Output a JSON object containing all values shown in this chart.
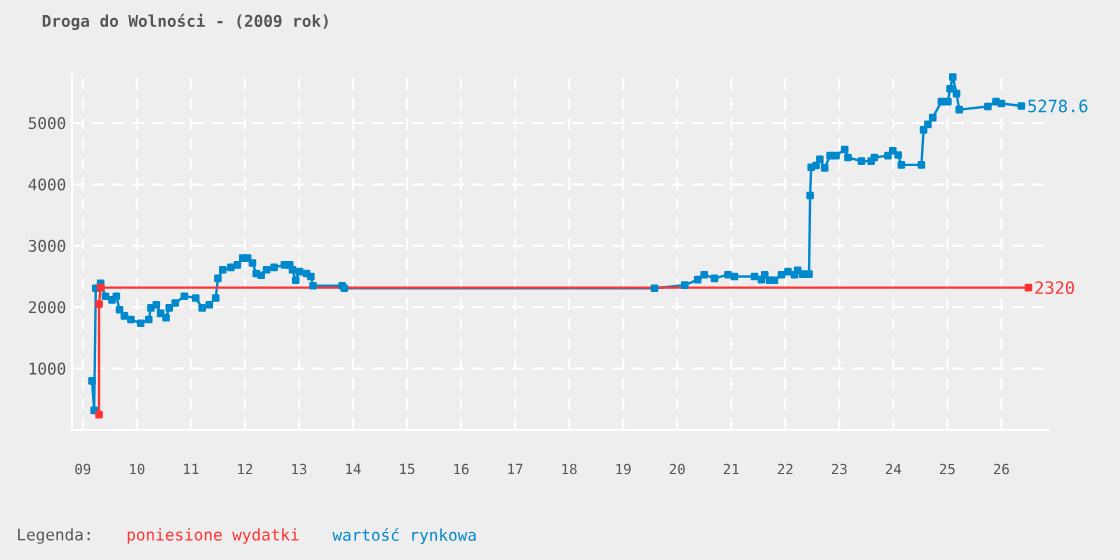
{
  "chart_data": {
    "type": "line",
    "title": "Droga do Wolności - (2009 rok)",
    "xlim": [
      8.8,
      26.9
    ],
    "ylim": [
      0,
      5800
    ],
    "xticks": [
      {
        "value": 9,
        "label": "09"
      },
      10,
      11,
      12,
      13,
      14,
      15,
      16,
      17,
      18,
      19,
      20,
      21,
      22,
      23,
      24,
      25,
      26
    ],
    "yticks": [
      1000,
      2000,
      3000,
      4000,
      5000
    ],
    "grid": true,
    "legend": "bottom left",
    "legend_title": "Legenda:",
    "marker": "square",
    "line_style": "solid",
    "series": [
      {
        "name": "poniesione wydatki",
        "color": "#ff3333",
        "x": [
          9.3,
          9.3,
          9.33,
          26.5
        ],
        "values": [
          250,
          2050,
          2320,
          2320
        ]
      },
      {
        "name": "wartość rynkowa",
        "color": "#0088cc",
        "x": [
          9.17,
          9.21,
          9.24,
          9.33,
          9.42,
          9.54,
          9.62,
          9.68,
          9.77,
          9.89,
          10.07,
          10.22,
          10.26,
          10.36,
          10.44,
          10.54,
          10.6,
          10.71,
          10.88,
          11.09,
          11.21,
          11.34,
          11.46,
          11.5,
          11.59,
          11.74,
          11.86,
          11.96,
          12.05,
          12.14,
          12.21,
          12.3,
          12.4,
          12.54,
          12.73,
          12.83,
          12.88,
          12.94,
          13.01,
          13.14,
          13.22,
          13.26,
          13.8,
          13.84,
          19.58,
          20.14,
          20.38,
          20.5,
          20.69,
          20.94,
          21.06,
          21.43,
          21.56,
          21.62,
          21.71,
          21.8,
          21.93,
          22.05,
          22.17,
          22.23,
          22.32,
          22.44,
          22.46,
          22.48,
          22.57,
          22.64,
          22.73,
          22.83,
          22.94,
          23.1,
          23.16,
          23.41,
          23.59,
          23.65,
          23.9,
          23.99,
          24.09,
          24.15,
          24.52,
          24.56,
          24.64,
          24.73,
          24.89,
          25.01,
          25.05,
          25.1,
          25.17,
          25.22,
          25.75,
          25.9,
          26.0,
          26.37
        ],
        "values": [
          800,
          320,
          2310,
          2390,
          2180,
          2120,
          2180,
          1960,
          1860,
          1800,
          1740,
          1800,
          1990,
          2040,
          1900,
          1830,
          1990,
          2070,
          2180,
          2150,
          1990,
          2040,
          2150,
          2470,
          2610,
          2650,
          2690,
          2800,
          2800,
          2720,
          2550,
          2520,
          2610,
          2650,
          2690,
          2690,
          2610,
          2440,
          2580,
          2550,
          2500,
          2350,
          2350,
          2310,
          2310,
          2360,
          2450,
          2530,
          2470,
          2530,
          2500,
          2500,
          2450,
          2530,
          2440,
          2440,
          2530,
          2580,
          2530,
          2600,
          2540,
          2540,
          3820,
          4280,
          4310,
          4410,
          4270,
          4470,
          4470,
          4570,
          4440,
          4380,
          4380,
          4440,
          4470,
          4550,
          4480,
          4320,
          4320,
          4890,
          4980,
          5090,
          5350,
          5350,
          5560,
          5750,
          5480,
          5220,
          5270,
          5350,
          5320,
          5278.6
        ]
      }
    ],
    "annotations": [
      {
        "text": "2320",
        "x": 26.5,
        "y": 2320
      },
      {
        "text": "5278.6",
        "x": 26.37,
        "y": 5278.6
      }
    ]
  }
}
